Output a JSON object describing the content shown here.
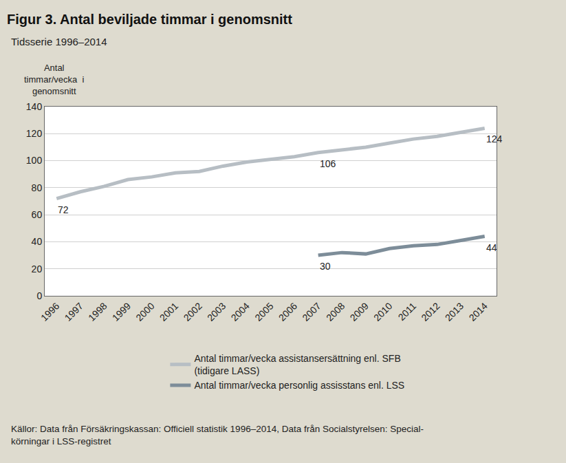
{
  "chart_data": {
    "type": "line",
    "title": "Figur 3. Antal beviljade timmar i genomsnitt",
    "subtitle": "Tidsserie 1996–2014",
    "y_label": "Antal\ntimmar/vecka  i\ngenomsnitt",
    "source": "Källor: Data från Försäkringskassan: Officiell statistik 1996–2014, Data från Socialstyrelsen: Special-\nkörningar i LSS-registret",
    "categories": [
      "1996",
      "1997",
      "1998",
      "1999",
      "2000",
      "2001",
      "2002",
      "2003",
      "2004",
      "2005",
      "2006",
      "2007",
      "2008",
      "2009",
      "2010",
      "2011",
      "2012",
      "2013",
      "2014"
    ],
    "series": [
      {
        "name": "Antal timmar/vecka assistansersättning enl. SFB\n(tidigare LASS)",
        "color": "#b7bec4",
        "values": [
          72,
          77,
          81,
          86,
          88,
          91,
          92,
          96,
          99,
          101,
          103,
          106,
          108,
          110,
          113,
          116,
          118,
          121,
          124
        ]
      },
      {
        "name": "Antal timmar/vecka personlig assisstans enl. LSS",
        "color": "#7d8d99",
        "values": [
          null,
          null,
          null,
          null,
          null,
          null,
          null,
          null,
          null,
          null,
          null,
          30,
          32,
          31,
          35,
          37,
          38,
          41,
          44
        ]
      }
    ],
    "annotations": [
      {
        "x": "1996",
        "y": 72,
        "text": "72"
      },
      {
        "x": "2007",
        "y": 106,
        "text": "106"
      },
      {
        "x": "2014",
        "y": 124,
        "text": "124"
      },
      {
        "x": "2007",
        "y": 30,
        "text": "30"
      },
      {
        "x": "2014",
        "y": 44,
        "text": "44"
      }
    ],
    "ylim": [
      0,
      140
    ],
    "yticks": [
      0,
      20,
      40,
      60,
      80,
      100,
      120,
      140
    ],
    "grid": true,
    "legend": "bottom"
  }
}
